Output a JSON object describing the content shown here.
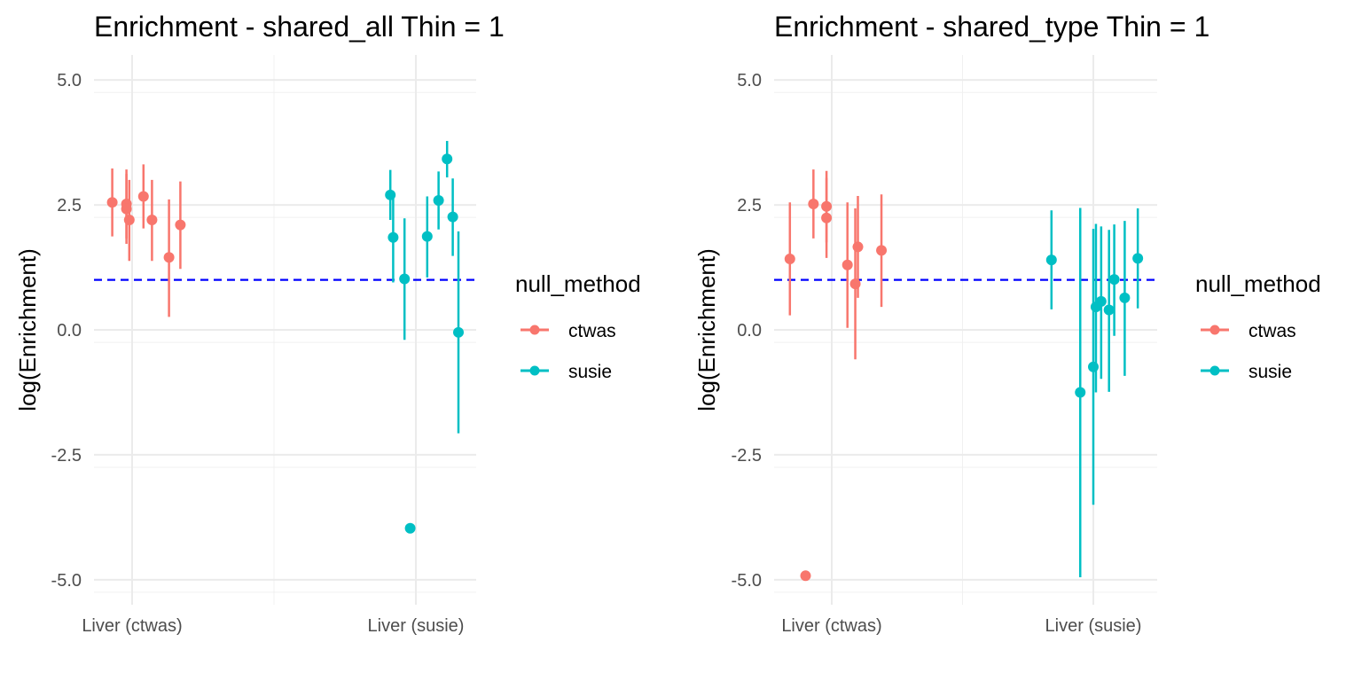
{
  "chart_data": [
    {
      "type": "scatter",
      "title": "Enrichment - shared_all Thin = 1",
      "xlabel": "",
      "ylabel": "log(Enrichment)",
      "categories": [
        "Liver (ctwas)",
        "Liver (susie)"
      ],
      "yticks": [
        "5.0",
        "2.5",
        "0.0",
        "-2.5",
        "-5.0"
      ],
      "ylim": [
        -5.5,
        5.5
      ],
      "grid": true,
      "reference_line": {
        "y": 1,
        "color": "#0000FF",
        "style": "dashed"
      },
      "legend": {
        "title": "null_method",
        "placement": "right",
        "entries": [
          "ctwas",
          "susie"
        ]
      },
      "series": [
        {
          "name": "ctwas",
          "color": "#F8766D",
          "points": [
            {
              "x": -0.07,
              "y": 2.55,
              "lo": 1.87,
              "hi": 3.23
            },
            {
              "x": -0.02,
              "y": 2.52,
              "lo": 1.83,
              "hi": 3.21
            },
            {
              "x": -0.02,
              "y": 2.42,
              "lo": 1.72,
              "hi": 3.12
            },
            {
              "x": -0.01,
              "y": 2.2,
              "lo": 1.38,
              "hi": 3.0
            },
            {
              "x": 0.04,
              "y": 2.67,
              "lo": 2.03,
              "hi": 3.31
            },
            {
              "x": 0.07,
              "y": 2.2,
              "lo": 1.38,
              "hi": 3.0
            },
            {
              "x": 0.13,
              "y": 1.45,
              "lo": 0.26,
              "hi": 2.61
            },
            {
              "x": 0.17,
              "y": 2.1,
              "lo": 1.22,
              "hi": 2.97
            }
          ]
        },
        {
          "name": "susie",
          "color": "#00BFC4",
          "points": [
            {
              "x": 0.91,
              "y": 2.7,
              "lo": 2.2,
              "hi": 3.2
            },
            {
              "x": 0.92,
              "y": 1.85,
              "lo": 0.95,
              "hi": 2.75
            },
            {
              "x": 0.96,
              "y": 1.02,
              "lo": -0.2,
              "hi": 2.23
            },
            {
              "x": 0.98,
              "y": -3.97,
              "lo": null,
              "hi": null
            },
            {
              "x": 1.04,
              "y": 1.87,
              "lo": 1.05,
              "hi": 2.67
            },
            {
              "x": 1.08,
              "y": 2.59,
              "lo": 2.01,
              "hi": 3.17
            },
            {
              "x": 1.11,
              "y": 3.42,
              "lo": 3.05,
              "hi": 3.78
            },
            {
              "x": 1.13,
              "y": 2.26,
              "lo": 1.48,
              "hi": 3.03
            },
            {
              "x": 1.15,
              "y": -0.05,
              "lo": -2.07,
              "hi": 1.97
            }
          ]
        }
      ]
    },
    {
      "type": "scatter",
      "title": "Enrichment - shared_type Thin = 1",
      "xlabel": "",
      "ylabel": "log(Enrichment)",
      "categories": [
        "Liver (ctwas)",
        "Liver (susie)"
      ],
      "yticks": [
        "5.0",
        "2.5",
        "0.0",
        "-2.5",
        "-5.0"
      ],
      "ylim": [
        -5.5,
        5.5
      ],
      "grid": true,
      "reference_line": {
        "y": 1,
        "color": "#0000FF",
        "style": "dashed"
      },
      "legend": {
        "title": "null_method",
        "placement": "right",
        "entries": [
          "ctwas",
          "susie"
        ]
      },
      "series": [
        {
          "name": "ctwas",
          "color": "#F8766D",
          "points": [
            {
              "x": -0.16,
              "y": 1.42,
              "lo": 0.29,
              "hi": 2.55
            },
            {
              "x": -0.1,
              "y": -4.92,
              "lo": null,
              "hi": null
            },
            {
              "x": -0.07,
              "y": 2.52,
              "lo": 1.83,
              "hi": 3.21
            },
            {
              "x": -0.02,
              "y": 2.47,
              "lo": 1.75,
              "hi": 3.18
            },
            {
              "x": -0.02,
              "y": 2.24,
              "lo": 1.44,
              "hi": 3.04
            },
            {
              "x": 0.06,
              "y": 1.3,
              "lo": 0.04,
              "hi": 2.55
            },
            {
              "x": 0.09,
              "y": 0.92,
              "lo": -0.59,
              "hi": 2.43
            },
            {
              "x": 0.1,
              "y": 1.66,
              "lo": 0.64,
              "hi": 2.68
            },
            {
              "x": 0.19,
              "y": 1.59,
              "lo": 0.46,
              "hi": 2.71
            }
          ]
        },
        {
          "name": "susie",
          "color": "#00BFC4",
          "points": [
            {
              "x": 0.84,
              "y": 1.4,
              "lo": 0.41,
              "hi": 2.39
            },
            {
              "x": 0.95,
              "y": -1.25,
              "lo": -4.95,
              "hi": 2.44
            },
            {
              "x": 1.0,
              "y": -0.74,
              "lo": -3.5,
              "hi": 2.02
            },
            {
              "x": 1.01,
              "y": 0.46,
              "lo": -1.25,
              "hi": 2.12
            },
            {
              "x": 1.03,
              "y": 0.57,
              "lo": -0.98,
              "hi": 2.07
            },
            {
              "x": 1.06,
              "y": 0.4,
              "lo": -1.24,
              "hi": 2.0
            },
            {
              "x": 1.08,
              "y": 1.01,
              "lo": -0.12,
              "hi": 2.11
            },
            {
              "x": 1.12,
              "y": 0.64,
              "lo": -0.92,
              "hi": 2.18
            },
            {
              "x": 1.17,
              "y": 1.43,
              "lo": 0.43,
              "hi": 2.43
            }
          ]
        }
      ]
    }
  ]
}
